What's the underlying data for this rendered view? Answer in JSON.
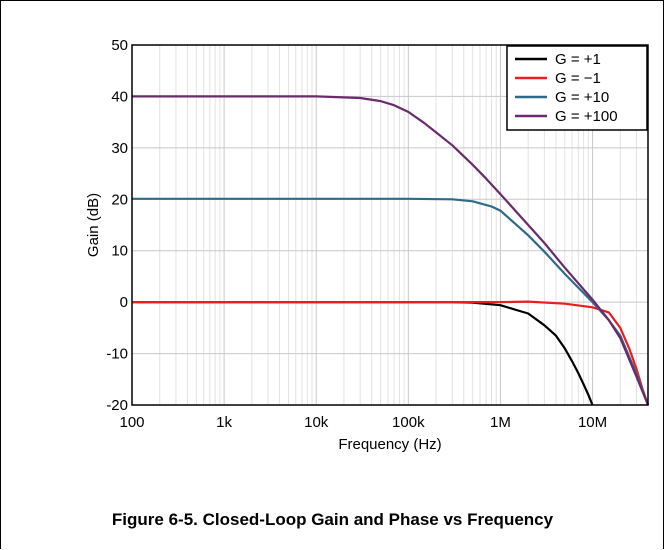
{
  "chart_data": {
    "type": "line",
    "title": "",
    "xlabel": "Frequency (Hz)",
    "ylabel": "Gain (dB)",
    "x_scale": "log",
    "xlim": [
      100,
      40000000
    ],
    "ylim": [
      -20,
      50
    ],
    "x_ticks": [
      {
        "value": 100,
        "label": "100"
      },
      {
        "value": 1000,
        "label": "1k"
      },
      {
        "value": 10000,
        "label": "10k"
      },
      {
        "value": 100000,
        "label": "100k"
      },
      {
        "value": 1000000,
        "label": "1M"
      },
      {
        "value": 10000000,
        "label": "10M"
      }
    ],
    "y_ticks": [
      50,
      40,
      30,
      20,
      10,
      0,
      -10,
      -20
    ],
    "grid": true,
    "legend_position": "top-right",
    "series": [
      {
        "name": "G = +1",
        "color": "#000000",
        "points": [
          [
            100,
            0
          ],
          [
            100000,
            0
          ],
          [
            300000,
            0
          ],
          [
            500000,
            -0.1
          ],
          [
            1000000,
            -0.6
          ],
          [
            2000000,
            -2.2
          ],
          [
            3000000,
            -4.5
          ],
          [
            4000000,
            -6.5
          ],
          [
            5000000,
            -9
          ],
          [
            6000000,
            -11.5
          ],
          [
            7000000,
            -13.8
          ],
          [
            8000000,
            -16
          ],
          [
            9000000,
            -18
          ],
          [
            10000000,
            -20
          ]
        ]
      },
      {
        "name": "G = −1",
        "color": "#ee1c1c",
        "points": [
          [
            100,
            0
          ],
          [
            1000000,
            0
          ],
          [
            2000000,
            0.1
          ],
          [
            5000000,
            -0.3
          ],
          [
            10000000,
            -1
          ],
          [
            15000000,
            -2
          ],
          [
            20000000,
            -5
          ],
          [
            25000000,
            -9
          ],
          [
            30000000,
            -13
          ],
          [
            35000000,
            -17
          ],
          [
            40000000,
            -20
          ]
        ]
      },
      {
        "name": "G = +10",
        "color": "#2e6b88",
        "points": [
          [
            100,
            20.1
          ],
          [
            100000,
            20.1
          ],
          [
            300000,
            20
          ],
          [
            500000,
            19.6
          ],
          [
            800000,
            18.6
          ],
          [
            1000000,
            17.8
          ],
          [
            2000000,
            13
          ],
          [
            3000000,
            9.8
          ],
          [
            5000000,
            5.5
          ],
          [
            10000000,
            0
          ],
          [
            15000000,
            -3.5
          ],
          [
            20000000,
            -6.5
          ],
          [
            30000000,
            -14
          ],
          [
            40000000,
            -20
          ]
        ]
      },
      {
        "name": "G = +100",
        "color": "#6a2a6e",
        "points": [
          [
            100,
            40
          ],
          [
            1000,
            40
          ],
          [
            10000,
            40
          ],
          [
            30000,
            39.7
          ],
          [
            50000,
            39.1
          ],
          [
            70000,
            38.3
          ],
          [
            100000,
            37
          ],
          [
            150000,
            34.8
          ],
          [
            200000,
            33
          ],
          [
            300000,
            30.5
          ],
          [
            500000,
            26.7
          ],
          [
            700000,
            24
          ],
          [
            1000000,
            21
          ],
          [
            2000000,
            15
          ],
          [
            3000000,
            11.5
          ],
          [
            5000000,
            6.7
          ],
          [
            10000000,
            0.5
          ],
          [
            15000000,
            -3.5
          ],
          [
            20000000,
            -7
          ],
          [
            30000000,
            -14.5
          ],
          [
            40000000,
            -20
          ]
        ]
      }
    ]
  },
  "caption": "Figure 6-5. Closed-Loop Gain and Phase vs Frequency"
}
